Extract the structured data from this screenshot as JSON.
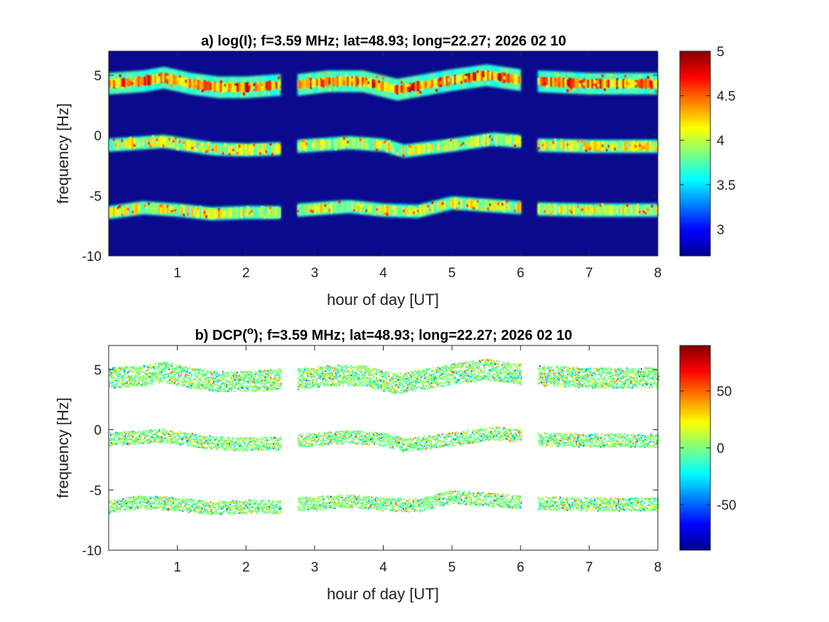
{
  "chart_data": [
    {
      "type": "heatmap",
      "title": "a) log(I); f=3.59 MHz;  lat=48.93; long=22.27; 2026 02 10",
      "xlabel": "hour of day [UT]",
      "ylabel": "frequency [Hz]",
      "xlim": [
        0,
        8
      ],
      "ylim": [
        -10,
        7
      ],
      "xticks": [
        "1",
        "2",
        "3",
        "4",
        "5",
        "6",
        "7",
        "8"
      ],
      "yticks": [
        "5",
        "0",
        "-5",
        "-10"
      ],
      "colorbar": {
        "range": [
          2.7,
          5
        ],
        "ticks": [
          "5",
          "4.5",
          "4",
          "3.5",
          "3"
        ],
        "colormap": "jet"
      },
      "background_color": "#0a0a8f",
      "data_gaps_hours": [
        [
          2.5,
          2.75
        ],
        [
          6.0,
          6.25
        ]
      ],
      "bands": [
        {
          "name": "upper",
          "center_hz": [
            [
              0.0,
              4.3
            ],
            [
              0.5,
              4.5
            ],
            [
              0.8,
              4.8
            ],
            [
              1.2,
              4.3
            ],
            [
              1.6,
              4.0
            ],
            [
              2.0,
              4.0
            ],
            [
              2.5,
              4.2
            ],
            [
              2.75,
              4.2
            ],
            [
              3.2,
              4.5
            ],
            [
              3.7,
              4.5
            ],
            [
              4.2,
              3.8
            ],
            [
              4.6,
              4.2
            ],
            [
              5.0,
              4.6
            ],
            [
              5.5,
              5.0
            ],
            [
              6.0,
              4.6
            ],
            [
              6.25,
              4.5
            ],
            [
              7.0,
              4.3
            ],
            [
              8.0,
              4.3
            ]
          ]
        },
        {
          "name": "center",
          "center_hz": [
            [
              0.0,
              -0.8
            ],
            [
              0.8,
              -0.5
            ],
            [
              1.5,
              -1.1
            ],
            [
              2.0,
              -1.2
            ],
            [
              2.5,
              -1.1
            ],
            [
              2.75,
              -0.9
            ],
            [
              3.5,
              -0.6
            ],
            [
              4.0,
              -0.8
            ],
            [
              4.3,
              -1.3
            ],
            [
              5.0,
              -0.8
            ],
            [
              5.6,
              -0.3
            ],
            [
              6.0,
              -0.5
            ],
            [
              6.25,
              -0.8
            ],
            [
              7.0,
              -0.9
            ],
            [
              8.0,
              -0.9
            ]
          ]
        },
        {
          "name": "lower",
          "center_hz": [
            [
              0.0,
              -6.4
            ],
            [
              0.5,
              -6.0
            ],
            [
              1.0,
              -6.2
            ],
            [
              1.5,
              -6.5
            ],
            [
              2.0,
              -6.4
            ],
            [
              2.5,
              -6.4
            ],
            [
              2.75,
              -6.2
            ],
            [
              3.5,
              -5.9
            ],
            [
              4.0,
              -6.2
            ],
            [
              4.5,
              -6.3
            ],
            [
              5.0,
              -5.6
            ],
            [
              5.5,
              -5.8
            ],
            [
              6.0,
              -6.0
            ],
            [
              6.25,
              -6.1
            ],
            [
              7.0,
              -6.2
            ],
            [
              8.0,
              -6.2
            ]
          ]
        }
      ]
    },
    {
      "type": "heatmap",
      "title_prefix": "b) DCP(",
      "title_superscript": "o",
      "title_suffix": "); f=3.59 MHz;  lat=48.93; long=22.27; 2026 02 10",
      "xlabel": "hour of day [UT]",
      "ylabel": "frequency [Hz]",
      "xlim": [
        0,
        8
      ],
      "ylim": [
        -10,
        7
      ],
      "xticks": [
        "1",
        "2",
        "3",
        "4",
        "5",
        "6",
        "7",
        "8"
      ],
      "yticks": [
        "5",
        "0",
        "-5",
        "-10"
      ],
      "colorbar": {
        "range": [
          -90,
          90
        ],
        "ticks": [
          "50",
          "0",
          "-50"
        ],
        "colormap": "jet"
      },
      "background_color": "#ffffff",
      "dominant_value": 0,
      "data_gaps_hours": [
        [
          2.5,
          2.75
        ],
        [
          6.0,
          6.25
        ]
      ],
      "bands": [
        "upper",
        "center",
        "lower"
      ]
    }
  ]
}
